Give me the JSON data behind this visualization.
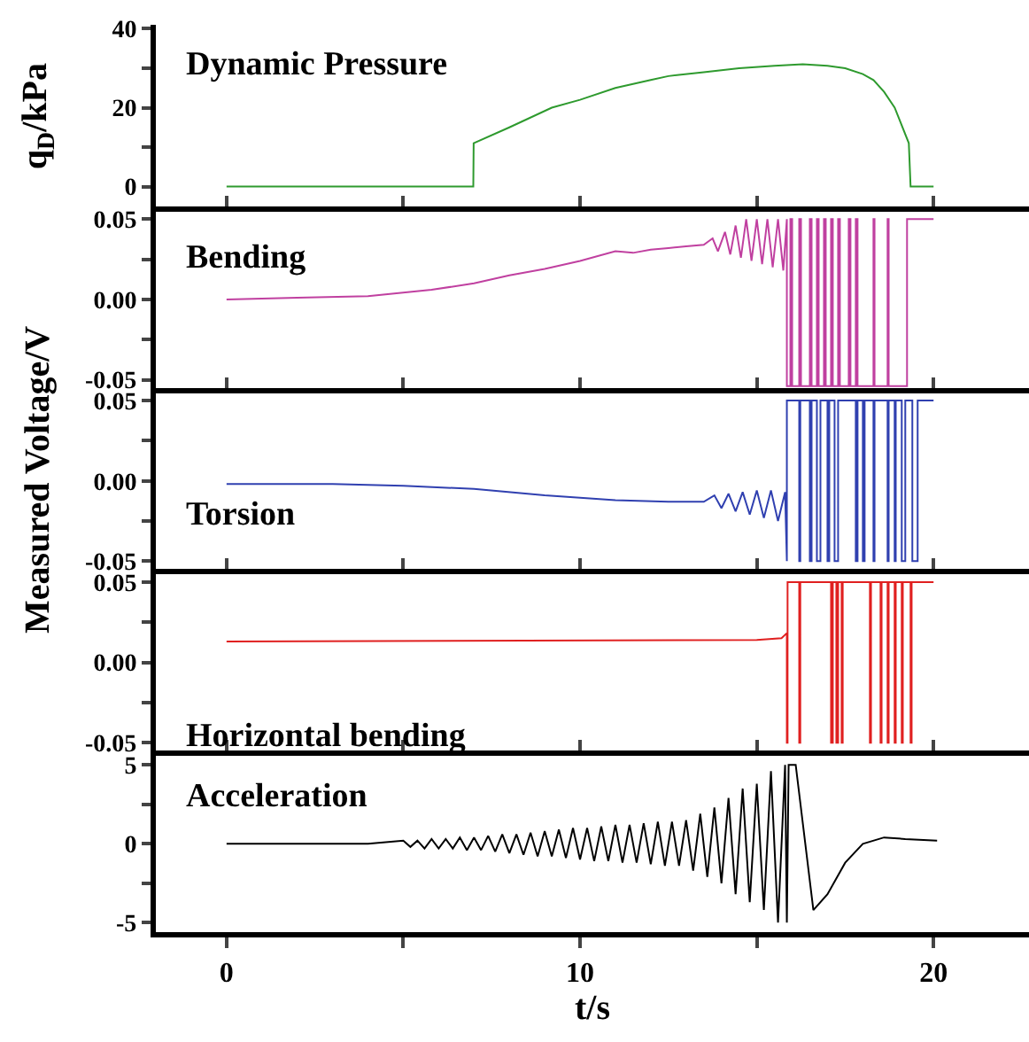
{
  "chart_data": [
    {
      "type": "line",
      "title": "Dynamic Pressure",
      "ylabel": "q$_{D}$/kPa",
      "tick_labels": "y",
      "xlim": [
        -2,
        22.7
      ],
      "xticks": [
        {
          "value": 0,
          "label": null
        },
        {
          "value": 5,
          "label": null
        },
        {
          "value": 10,
          "label": null
        },
        {
          "value": 15,
          "label": null
        },
        {
          "value": 20,
          "label": null
        }
      ],
      "ylim": [
        -5,
        41
      ],
      "yticks": [
        0,
        {
          "value": 10,
          "label": null
        },
        20,
        {
          "value": 30,
          "label": null
        },
        40
      ],
      "x": [
        0,
        6.98,
        6.99,
        8,
        9.2,
        10,
        11,
        12,
        12.5,
        13.5,
        14.5,
        15.5,
        16.3,
        17,
        17.5,
        18,
        18.3,
        18.6,
        18.9,
        19.3,
        19.35,
        20
      ],
      "series": [
        {
          "color": "#2e9a2e",
          "values": [
            0,
            0,
            11,
            15,
            20,
            22,
            25,
            27,
            28,
            29,
            30,
            30.6,
            31,
            30.6,
            30,
            28.5,
            27,
            24,
            20,
            11,
            0,
            0
          ]
        }
      ]
    },
    {
      "type": "line",
      "title": "Bending",
      "tick_labels": "y",
      "xlim": [
        -2,
        22.7
      ],
      "xticks": [
        {
          "value": 0,
          "label": null
        },
        {
          "value": 5,
          "label": null
        },
        {
          "value": 10,
          "label": null
        },
        {
          "value": 15,
          "label": null
        },
        {
          "value": 20,
          "label": null
        }
      ],
      "ylim": [
        -0.055,
        0.058
      ],
      "yticks": [
        {
          "value": -0.05,
          "label": "-0.05"
        },
        {
          "value": -0.025,
          "label": null
        },
        {
          "value": 0,
          "label": "0.00"
        },
        {
          "value": 0.025,
          "label": null
        },
        {
          "value": 0.05,
          "label": "0.05"
        }
      ],
      "x": [
        0,
        2,
        4,
        5.8,
        7,
        8,
        9,
        10,
        11,
        11.5,
        12,
        12.5,
        13,
        13.5,
        13.75,
        13.9,
        14.1,
        14.25,
        14.4,
        14.55,
        14.7,
        14.85,
        15,
        15.15,
        15.3,
        15.45,
        15.6,
        15.75,
        15.85,
        15.85,
        15.95,
        15.95,
        16.0,
        16.0,
        16.2,
        16.2,
        16.25,
        16.25,
        16.5,
        16.5,
        16.55,
        16.55,
        16.7,
        16.7,
        16.75,
        16.75,
        16.9,
        16.9,
        16.95,
        16.95,
        17.1,
        17.1,
        17.15,
        17.15,
        17.3,
        17.3,
        17.35,
        17.35,
        17.6,
        17.6,
        17.65,
        17.65,
        17.8,
        17.8,
        17.85,
        17.85,
        18.3,
        18.3,
        18.33,
        18.33,
        18.7,
        18.7,
        18.73,
        18.73,
        19.25,
        19.25,
        19.28,
        19.28,
        20
      ],
      "series": [
        {
          "color": "#c040a0",
          "values": [
            0,
            0.001,
            0.002,
            0.006,
            0.01,
            0.015,
            0.019,
            0.024,
            0.03,
            0.029,
            0.031,
            0.032,
            0.033,
            0.034,
            0.038,
            0.03,
            0.042,
            0.028,
            0.046,
            0.026,
            0.05,
            0.024,
            0.05,
            0.022,
            0.05,
            0.02,
            0.05,
            0.018,
            0.05,
            -0.054,
            -0.054,
            0.05,
            0.05,
            -0.054,
            -0.054,
            0.05,
            0.05,
            -0.054,
            -0.054,
            0.05,
            0.05,
            -0.054,
            -0.054,
            0.05,
            0.05,
            -0.054,
            -0.054,
            0.05,
            0.05,
            -0.054,
            -0.054,
            0.05,
            0.05,
            -0.054,
            -0.054,
            0.05,
            0.05,
            -0.054,
            -0.054,
            0.05,
            0.05,
            -0.054,
            -0.054,
            0.05,
            0.05,
            -0.054,
            -0.054,
            0.05,
            0.05,
            -0.054,
            -0.054,
            0.05,
            0.05,
            -0.054,
            -0.054,
            0.05,
            0.05,
            0.05,
            0.05
          ]
        }
      ]
    },
    {
      "type": "line",
      "title": "Torsion",
      "ylabel": "Measured Voltage/V",
      "tick_labels": "y",
      "xlim": [
        -2,
        22.7
      ],
      "xticks": [
        {
          "value": 0,
          "label": null
        },
        {
          "value": 5,
          "label": null
        },
        {
          "value": 10,
          "label": null
        },
        {
          "value": 15,
          "label": null
        },
        {
          "value": 20,
          "label": null
        }
      ],
      "ylim": [
        -0.055,
        0.058
      ],
      "yticks": [
        {
          "value": -0.05,
          "label": "-0.05"
        },
        {
          "value": -0.025,
          "label": null
        },
        {
          "value": 0,
          "label": "0.00"
        },
        {
          "value": 0.025,
          "label": null
        },
        {
          "value": 0.05,
          "label": "0.05"
        }
      ],
      "x": [
        0,
        3,
        5,
        7,
        9,
        11,
        12.5,
        13.5,
        13.8,
        14.0,
        14.2,
        14.4,
        14.6,
        14.8,
        15.0,
        15.2,
        15.4,
        15.6,
        15.8,
        15.85,
        15.85,
        16.2,
        16.2,
        16.23,
        16.23,
        16.5,
        16.5,
        16.55,
        16.55,
        16.7,
        16.7,
        16.8,
        16.8,
        17.0,
        17.0,
        17.05,
        17.05,
        17.2,
        17.2,
        17.3,
        17.3,
        17.8,
        17.8,
        17.85,
        17.85,
        18.0,
        18.0,
        18.05,
        18.05,
        18.3,
        18.3,
        18.33,
        18.33,
        18.7,
        18.7,
        18.73,
        18.73,
        18.9,
        18.9,
        18.93,
        18.93,
        19.1,
        19.1,
        19.2,
        19.2,
        19.4,
        19.4,
        19.55,
        19.55,
        20
      ],
      "series": [
        {
          "color": "#3040b0",
          "values": [
            -0.002,
            -0.002,
            -0.003,
            -0.005,
            -0.009,
            -0.012,
            -0.013,
            -0.013,
            -0.009,
            -0.017,
            -0.008,
            -0.019,
            -0.007,
            -0.021,
            -0.006,
            -0.023,
            -0.006,
            -0.025,
            -0.007,
            -0.05,
            0.05,
            0.05,
            -0.05,
            -0.05,
            0.05,
            0.05,
            -0.05,
            -0.05,
            0.05,
            0.05,
            -0.05,
            -0.05,
            0.05,
            0.05,
            -0.05,
            -0.05,
            0.05,
            0.05,
            -0.05,
            -0.05,
            0.05,
            0.05,
            -0.05,
            -0.05,
            0.05,
            0.05,
            -0.05,
            -0.05,
            0.05,
            0.05,
            -0.05,
            -0.05,
            0.05,
            0.05,
            -0.05,
            -0.05,
            0.05,
            0.05,
            -0.05,
            -0.05,
            0.05,
            0.05,
            -0.05,
            -0.05,
            0.05,
            0.05,
            -0.05,
            -0.05,
            0.05,
            0.05
          ]
        }
      ]
    },
    {
      "type": "line",
      "title": "Horizontal bending",
      "tick_labels": "y",
      "xlim": [
        -2,
        22.7
      ],
      "xticks": [
        {
          "value": 0,
          "label": null
        },
        {
          "value": 5,
          "label": null
        },
        {
          "value": 10,
          "label": null
        },
        {
          "value": 15,
          "label": null
        },
        {
          "value": 20,
          "label": null
        }
      ],
      "ylim": [
        -0.055,
        0.058
      ],
      "yticks": [
        {
          "value": -0.05,
          "label": "-0.05"
        },
        {
          "value": -0.025,
          "label": null
        },
        {
          "value": 0,
          "label": "0.00"
        },
        {
          "value": 0.025,
          "label": null
        },
        {
          "value": 0.05,
          "label": "0.05"
        }
      ],
      "x": [
        0,
        15,
        15.7,
        15.84,
        15.85,
        15.85,
        15.87,
        15.87,
        16.2,
        16.2,
        16.23,
        16.23,
        17.1,
        17.1,
        17.15,
        17.15,
        17.25,
        17.25,
        17.3,
        17.3,
        17.4,
        17.4,
        17.43,
        17.43,
        18.2,
        18.2,
        18.23,
        18.23,
        18.5,
        18.5,
        18.53,
        18.53,
        18.7,
        18.7,
        18.73,
        18.73,
        18.9,
        18.9,
        18.93,
        18.93,
        19.1,
        19.1,
        19.13,
        19.13,
        19.35,
        19.35,
        19.38,
        19.38,
        20
      ],
      "series": [
        {
          "color": "#e02020",
          "values": [
            0.013,
            0.014,
            0.015,
            0.018,
            0.018,
            -0.05,
            -0.05,
            0.05,
            0.05,
            -0.05,
            -0.05,
            0.05,
            0.05,
            -0.05,
            -0.05,
            0.05,
            0.05,
            -0.05,
            -0.05,
            0.05,
            0.05,
            -0.05,
            -0.05,
            0.05,
            0.05,
            -0.05,
            -0.05,
            0.05,
            0.05,
            -0.05,
            -0.05,
            0.05,
            0.05,
            -0.05,
            -0.05,
            0.05,
            0.05,
            -0.05,
            -0.05,
            0.05,
            0.05,
            -0.05,
            -0.05,
            0.05,
            0.05,
            -0.05,
            -0.05,
            0.05,
            0.05
          ]
        }
      ]
    },
    {
      "type": "line",
      "title": "Acceleration",
      "xlabel": "t/s",
      "xlim": [
        -2,
        22.7
      ],
      "xticks": [
        0,
        {
          "value": 5,
          "label": null
        },
        10,
        {
          "value": 15,
          "label": null
        },
        20
      ],
      "ylim": [
        -5.6,
        5.9
      ],
      "yticks": [
        -5,
        {
          "value": -2.5,
          "label": null
        },
        0,
        {
          "value": 2.5,
          "label": null
        },
        5
      ],
      "x": [
        0,
        4,
        5.0,
        5.2,
        5.4,
        5.6,
        5.8,
        6.0,
        6.2,
        6.4,
        6.6,
        6.8,
        7.0,
        7.2,
        7.4,
        7.6,
        7.8,
        8.0,
        8.2,
        8.4,
        8.6,
        8.8,
        9.0,
        9.2,
        9.4,
        9.6,
        9.8,
        10.0,
        10.2,
        10.4,
        10.6,
        10.8,
        11.0,
        11.2,
        11.4,
        11.6,
        11.8,
        12.0,
        12.2,
        12.4,
        12.6,
        12.8,
        13.0,
        13.2,
        13.4,
        13.6,
        13.8,
        14.0,
        14.2,
        14.4,
        14.6,
        14.8,
        15.0,
        15.2,
        15.4,
        15.6,
        15.8,
        15.85,
        15.9,
        16.1,
        16.6,
        17.0,
        17.5,
        18.0,
        18.6,
        19.2,
        20.1
      ],
      "series": [
        {
          "color": "#000000",
          "values": [
            0,
            0,
            0.2,
            -0.2,
            0.2,
            -0.3,
            0.3,
            -0.3,
            0.3,
            -0.3,
            0.4,
            -0.4,
            0.4,
            -0.4,
            0.5,
            -0.5,
            0.6,
            -0.6,
            0.6,
            -0.7,
            0.7,
            -0.8,
            0.8,
            -0.8,
            0.9,
            -0.9,
            1.0,
            -1.0,
            1.0,
            -1.1,
            1.1,
            -1.1,
            1.2,
            -1.2,
            1.2,
            -1.2,
            1.3,
            -1.3,
            1.4,
            -1.4,
            1.4,
            -1.4,
            1.5,
            -1.7,
            1.9,
            -2.1,
            2.3,
            -2.5,
            2.9,
            -3.2,
            3.5,
            -3.7,
            3.8,
            -4.2,
            4.6,
            -5.0,
            5.0,
            -5.0,
            5.0,
            5.0,
            -4.2,
            -3.2,
            -1.2,
            0,
            0.4,
            0.3,
            0.2
          ]
        }
      ]
    }
  ]
}
